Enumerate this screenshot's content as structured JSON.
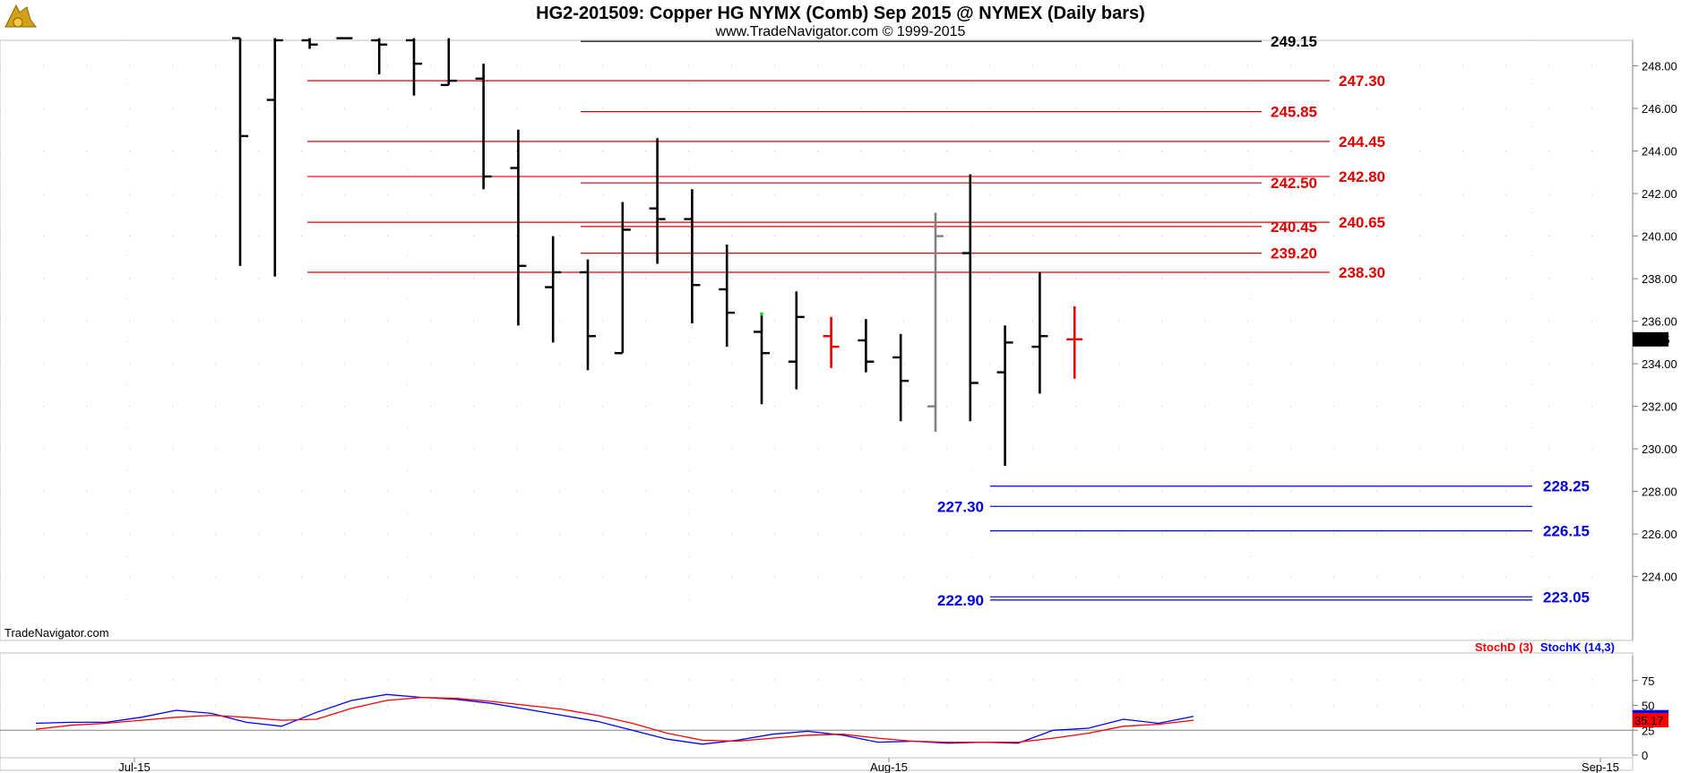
{
  "header": {
    "title": "HG2-201509:  Copper HG NYMX (Comb) Sep 2015 @ NYMEX  (Daily bars)",
    "subtitle": "www.TradeNavigator.com © 1999-2015",
    "watermark": "TradeNavigator.com"
  },
  "colors": {
    "resistance": "#e00000",
    "support": "#0000e0",
    "bar": "#000000",
    "grey_bar": "#808080",
    "stoch_k": "#0000ff",
    "stoch_d": "#ff0000",
    "last_price_bg": "#000000",
    "stoch_last_bg": "#ff0000"
  },
  "chart_data": [
    {
      "type": "ohlc",
      "ylim": [
        221.0,
        249.2
      ],
      "y_ticks": [
        "224.00",
        "226.00",
        "228.00",
        "230.00",
        "232.00",
        "234.00",
        "236.00",
        "238.00",
        "240.00",
        "242.00",
        "244.00",
        "246.00",
        "248.00"
      ],
      "x_ticks": [
        "Jul-15",
        "Aug-15",
        "Sep-15"
      ],
      "last_price": "235.15",
      "bars": [
        {
          "o": 249.3,
          "h": 249.3,
          "l": 238.6,
          "c": 244.7
        },
        {
          "o": 246.4,
          "h": 249.3,
          "l": 238.1,
          "c": 249.2
        },
        {
          "o": 249.2,
          "h": 249.3,
          "l": 248.8,
          "c": 249.0
        },
        {
          "o": 249.3,
          "h": 249.3,
          "l": 249.3,
          "c": 249.3
        },
        {
          "o": 249.2,
          "h": 249.3,
          "l": 247.6,
          "c": 249.0
        },
        {
          "o": 249.2,
          "h": 249.3,
          "l": 246.6,
          "c": 248.1
        },
        {
          "o": 247.1,
          "h": 249.3,
          "l": 247.1,
          "c": 247.3
        },
        {
          "o": 247.4,
          "h": 248.1,
          "l": 242.2,
          "c": 242.8
        },
        {
          "o": 243.2,
          "h": 245.0,
          "l": 235.8,
          "c": 238.6
        },
        {
          "o": 237.6,
          "h": 240.0,
          "l": 235.0,
          "c": 238.3
        },
        {
          "o": 238.3,
          "h": 238.9,
          "l": 233.7,
          "c": 235.3
        },
        {
          "o": 234.5,
          "h": 241.6,
          "l": 234.5,
          "c": 240.3
        },
        {
          "o": 241.3,
          "h": 244.6,
          "l": 238.7,
          "c": 240.8
        },
        {
          "o": 240.8,
          "h": 242.2,
          "l": 235.9,
          "c": 237.7
        },
        {
          "o": 237.5,
          "h": 239.6,
          "l": 234.8,
          "c": 236.4
        },
        {
          "o": 235.5,
          "h": 236.3,
          "l": 232.1,
          "c": 234.5,
          "flag": "green"
        },
        {
          "o": 234.1,
          "h": 237.4,
          "l": 232.8,
          "c": 236.2
        },
        {
          "o": 235.3,
          "h": 236.2,
          "l": 233.8,
          "c": 234.8,
          "flag": "red"
        },
        {
          "o": 235.1,
          "h": 236.1,
          "l": 233.6,
          "c": 234.1
        },
        {
          "o": 234.3,
          "h": 235.4,
          "l": 231.3,
          "c": 233.2
        },
        {
          "o": 232.0,
          "h": 241.1,
          "l": 230.8,
          "c": 240.0,
          "flag": "grey"
        },
        {
          "o": 239.2,
          "h": 242.9,
          "l": 231.3,
          "c": 233.1
        },
        {
          "o": 233.6,
          "h": 235.8,
          "l": 229.2,
          "c": 235.0
        },
        {
          "o": 234.8,
          "h": 238.3,
          "l": 232.6,
          "c": 235.3
        },
        {
          "o": 235.15,
          "h": 236.7,
          "l": 233.3,
          "c": 235.15,
          "flag": "red"
        }
      ],
      "levels": [
        {
          "value": 249.15,
          "label": "249.15",
          "kind": "black",
          "label_side": "right"
        },
        {
          "value": 247.3,
          "label": "247.30",
          "kind": "resistance",
          "label_side": "right"
        },
        {
          "value": 245.85,
          "label": "245.85",
          "kind": "resistance",
          "label_side": "right"
        },
        {
          "value": 244.45,
          "label": "244.45",
          "kind": "resistance",
          "label_side": "right"
        },
        {
          "value": 242.8,
          "label": "242.80",
          "kind": "resistance",
          "label_side": "right"
        },
        {
          "value": 242.5,
          "label": "242.50",
          "kind": "resistance",
          "label_side": "right"
        },
        {
          "value": 240.65,
          "label": "240.65",
          "kind": "resistance",
          "label_side": "right"
        },
        {
          "value": 240.45,
          "label": "240.45",
          "kind": "resistance",
          "label_side": "right"
        },
        {
          "value": 239.2,
          "label": "239.20",
          "kind": "resistance",
          "label_side": "right"
        },
        {
          "value": 238.3,
          "label": "238.30",
          "kind": "resistance",
          "label_side": "right"
        },
        {
          "value": 228.25,
          "label": "228.25",
          "kind": "support",
          "label_side": "right"
        },
        {
          "value": 227.3,
          "label": "227.30",
          "kind": "support",
          "label_side": "left"
        },
        {
          "value": 226.15,
          "label": "226.15",
          "kind": "support",
          "label_side": "right"
        },
        {
          "value": 223.05,
          "label": "223.05",
          "kind": "support",
          "label_side": "right"
        },
        {
          "value": 222.9,
          "label": "222.90",
          "kind": "support",
          "label_side": "left"
        }
      ]
    },
    {
      "type": "line",
      "ylim": [
        0,
        100
      ],
      "y_ticks": [
        "0",
        "25",
        "50",
        "75"
      ],
      "legend": [
        "StochD (3)",
        "StochK (14,3)"
      ],
      "last_k": "",
      "last_d": "35.17",
      "series": [
        {
          "name": "StochK (14,3)",
          "values": [
            32,
            33,
            33,
            38,
            45,
            42,
            33,
            29,
            43,
            55,
            61,
            58,
            56,
            52,
            46,
            40,
            34,
            25,
            16,
            11,
            15,
            21,
            24,
            20,
            13,
            14,
            12,
            13,
            12,
            25,
            27,
            36,
            32,
            39
          ]
        },
        {
          "name": "StochD (3)",
          "values": [
            26,
            30,
            32,
            35,
            38,
            40,
            38,
            35,
            36,
            47,
            55,
            58,
            57,
            54,
            50,
            46,
            40,
            32,
            22,
            15,
            14,
            17,
            20,
            21,
            17,
            14,
            13,
            13,
            13,
            17,
            22,
            29,
            31,
            35
          ]
        }
      ]
    }
  ]
}
